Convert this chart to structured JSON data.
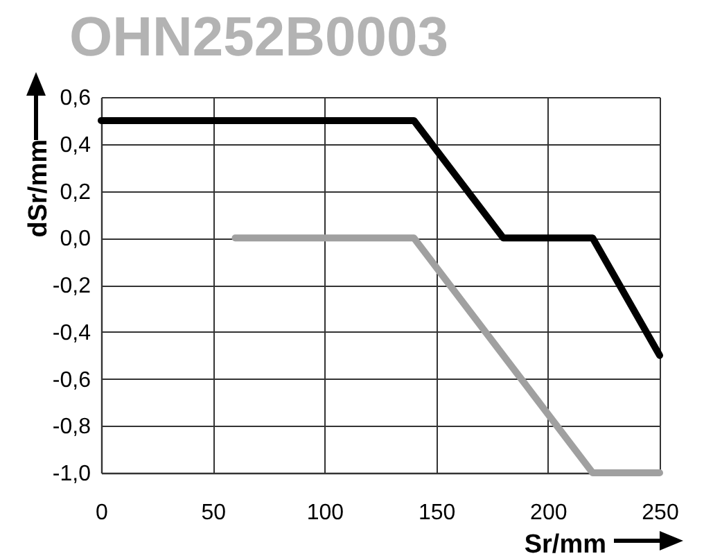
{
  "chart_data": {
    "type": "line",
    "title": "OHN252B0003",
    "xlabel": "Sr/mm",
    "ylabel": "dSr/mm",
    "series": [
      {
        "color": "#000000",
        "x": [
          0,
          140,
          180,
          220,
          250
        ],
        "values": [
          0.5,
          0.5,
          0,
          0,
          -0.5
        ]
      },
      {
        "color": "#a0a0a0",
        "x": [
          60,
          140,
          220,
          250
        ],
        "values": [
          0,
          0,
          -1,
          -1
        ]
      }
    ],
    "xlim": [
      0,
      250
    ],
    "xticks": [
      0,
      50,
      100,
      150,
      200,
      250
    ],
    "ylim": [
      -1,
      0.6
    ],
    "yticks": [
      {
        "value": -1,
        "label": "-1,0"
      },
      {
        "value": -0.8,
        "label": "-0,8"
      },
      {
        "value": -0.6,
        "label": "-0,6"
      },
      {
        "value": -0.4,
        "label": "-0,4"
      },
      {
        "value": -0.2,
        "label": "-0,2"
      },
      {
        "value": 0,
        "label": "0,0"
      },
      {
        "value": 0.2,
        "label": "0,2"
      },
      {
        "value": 0.4,
        "label": "0,4"
      },
      {
        "value": 0.6,
        "label": "0,6"
      }
    ],
    "grid": true
  }
}
